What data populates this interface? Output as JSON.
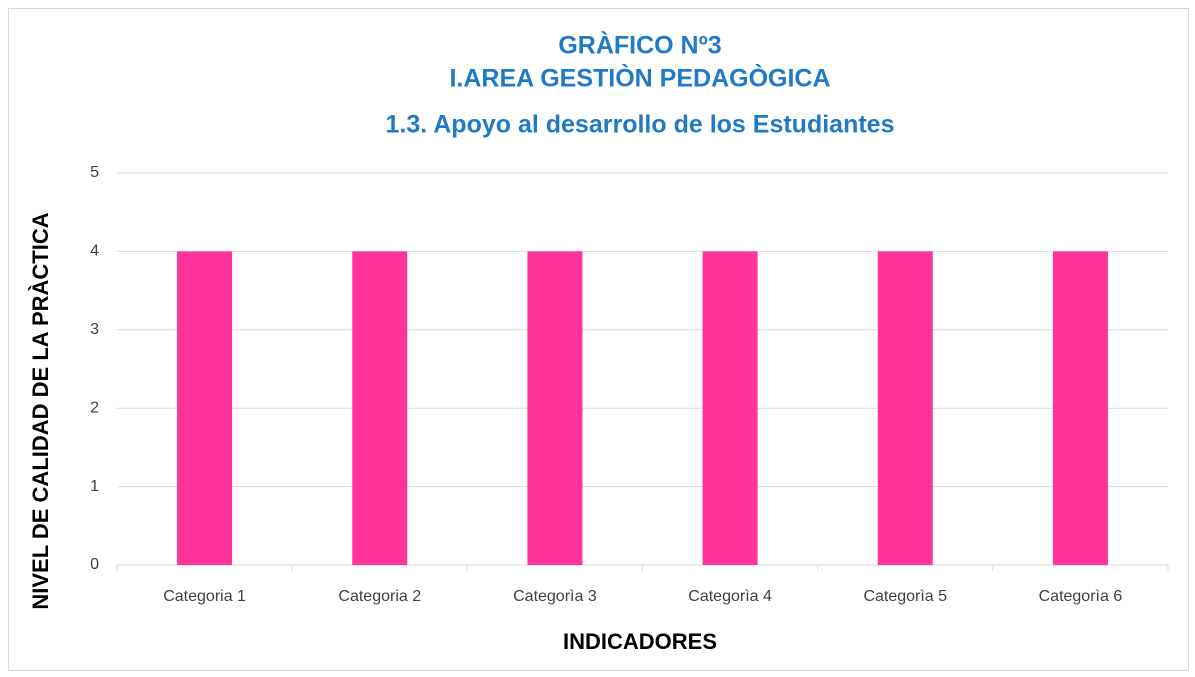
{
  "chart_data": {
    "type": "bar",
    "title": [
      "GRÀFICO  Nº3",
      "I.AREA GESTIÒN PEDAGÒGICA",
      "1.3. Apoyo al desarrollo de los Estudiantes"
    ],
    "xlabel": "INDICADORES",
    "ylabel": "NIVEL DE CALIDAD DE LA PRÀCTICA",
    "categories": [
      "Categoria 1",
      "Categoria 2",
      "Categorìa 3",
      "Categorìa 4",
      "Categorìa 5",
      "Categorìa 6"
    ],
    "values": [
      4,
      4,
      4,
      4,
      4,
      4
    ],
    "color": "#ff3399",
    "ylim": [
      0,
      5
    ],
    "yticks": [
      0,
      1,
      2,
      3,
      4,
      5
    ],
    "grid": true
  }
}
